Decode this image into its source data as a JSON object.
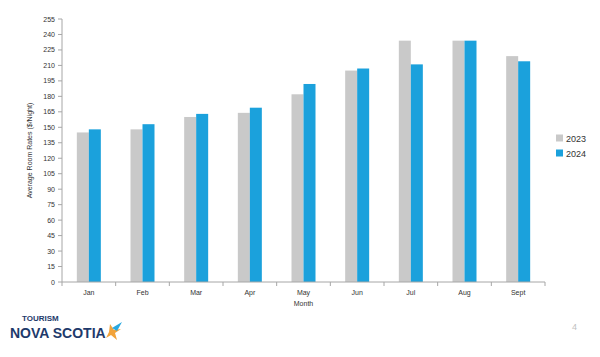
{
  "chart_data": {
    "type": "bar",
    "x_label": "Month",
    "y_label": "Average Room Rates ($/Night)",
    "categories": [
      "Jan",
      "Feb",
      "Mar",
      "Apr",
      "May",
      "Jun",
      "Jul",
      "Aug",
      "Sept"
    ],
    "series": [
      {
        "name": "2023",
        "color": "#c9c9c9",
        "values": [
          145,
          148,
          160,
          164,
          182,
          205,
          234,
          234,
          219
        ]
      },
      {
        "name": "2024",
        "color": "#1ba1dc",
        "values": [
          148,
          153,
          163,
          169,
          192,
          207,
          211,
          234,
          214
        ]
      }
    ],
    "ylim": [
      0,
      255
    ],
    "yticks": [
      0,
      15,
      30,
      45,
      60,
      75,
      90,
      105,
      120,
      135,
      150,
      165,
      180,
      195,
      210,
      225,
      240,
      255
    ],
    "grid": false,
    "legend": "right"
  },
  "footer": {
    "logo_top": "TOURISM",
    "logo_bottom": "NOVA SCOTIA",
    "page_number": "4"
  }
}
